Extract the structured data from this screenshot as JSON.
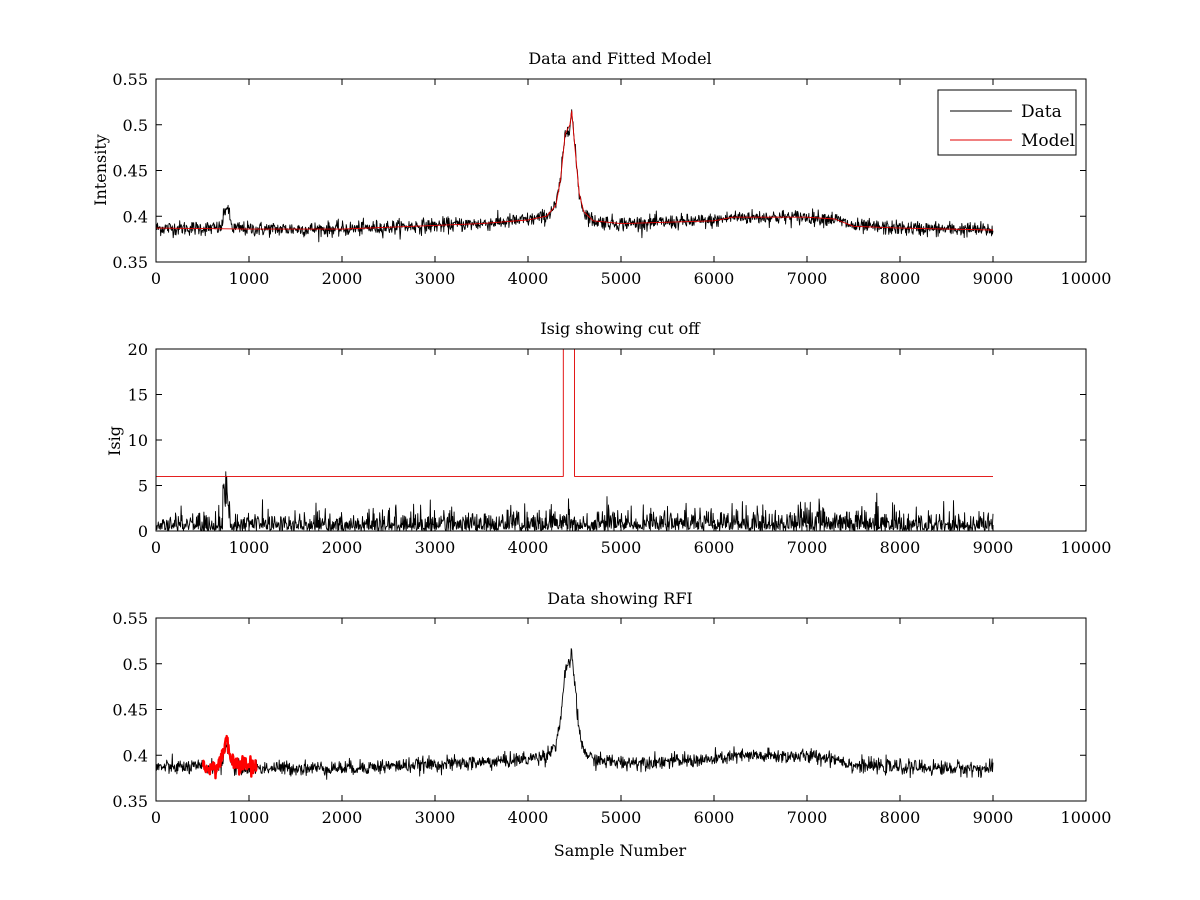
{
  "colors": {
    "data": "#000000",
    "model": "#e00000",
    "rfi": "#ff0000",
    "axes": "#000000",
    "background": "#ffffff"
  },
  "chart_data": [
    {
      "type": "line",
      "title": "Data and Fitted Model",
      "xlabel": "",
      "ylabel": "Intensity",
      "xlim": [
        0,
        10000
      ],
      "ylim": [
        0.35,
        0.55
      ],
      "xticks": [
        0,
        1000,
        2000,
        3000,
        4000,
        5000,
        6000,
        7000,
        8000,
        9000,
        10000
      ],
      "yticks": [
        0.35,
        0.4,
        0.45,
        0.5,
        0.55
      ],
      "xtick_labels": [
        "0",
        "1000",
        "2000",
        "3000",
        "4000",
        "5000",
        "6000",
        "7000",
        "8000",
        "9000",
        "10000"
      ],
      "ytick_labels": [
        "0.35",
        "0.4",
        "0.45",
        "0.5",
        "0.55"
      ],
      "legend": {
        "position": "top-right",
        "entries": [
          "Data",
          "Model"
        ]
      },
      "series": [
        {
          "name": "Data",
          "color": "#000000",
          "style": "noisy",
          "noise": 0.004,
          "x": [
            0,
            600,
            700,
            740,
            760,
            780,
            820,
            1000,
            2000,
            3000,
            3500,
            4000,
            4200,
            4300,
            4350,
            4400,
            4450,
            4470,
            4500,
            4550,
            4600,
            4700,
            5000,
            6000,
            6200,
            7000,
            7300,
            7500,
            8000,
            9000
          ],
          "y": [
            0.387,
            0.387,
            0.387,
            0.405,
            0.412,
            0.405,
            0.387,
            0.386,
            0.386,
            0.39,
            0.392,
            0.396,
            0.4,
            0.412,
            0.44,
            0.49,
            0.5,
            0.515,
            0.48,
            0.425,
            0.405,
            0.395,
            0.392,
            0.395,
            0.399,
            0.399,
            0.397,
            0.389,
            0.387,
            0.385
          ]
        },
        {
          "name": "Model",
          "color": "#e00000",
          "style": "line",
          "x": [
            0,
            1000,
            2000,
            3000,
            3500,
            4000,
            4200,
            4300,
            4350,
            4400,
            4450,
            4470,
            4500,
            4550,
            4600,
            4700,
            5000,
            6000,
            6200,
            7000,
            7300,
            7500,
            8000,
            9000
          ],
          "y": [
            0.387,
            0.386,
            0.386,
            0.39,
            0.392,
            0.396,
            0.4,
            0.412,
            0.44,
            0.49,
            0.5,
            0.515,
            0.48,
            0.425,
            0.405,
            0.395,
            0.392,
            0.395,
            0.399,
            0.399,
            0.397,
            0.389,
            0.387,
            0.385
          ]
        }
      ]
    },
    {
      "type": "line",
      "title": "Isig showing cut off",
      "xlabel": "",
      "ylabel": "Isig",
      "xlim": [
        0,
        10000
      ],
      "ylim": [
        0,
        20
      ],
      "xticks": [
        0,
        1000,
        2000,
        3000,
        4000,
        5000,
        6000,
        7000,
        8000,
        9000,
        10000
      ],
      "yticks": [
        0,
        5,
        10,
        15,
        20
      ],
      "xtick_labels": [
        "0",
        "1000",
        "2000",
        "3000",
        "4000",
        "5000",
        "6000",
        "7000",
        "8000",
        "9000",
        "10000"
      ],
      "ytick_labels": [
        "0",
        "5",
        "10",
        "15",
        "20"
      ],
      "series": [
        {
          "color": "#000000",
          "style": "spiky",
          "x": [
            0,
            700,
            730,
            750,
            770,
            800,
            4000,
            4300,
            7000,
            7300,
            9000
          ],
          "y": [
            1.2,
            1.2,
            5.5,
            7.0,
            5.5,
            1.2,
            1.4,
            1.5,
            1.6,
            1.5,
            1.3
          ]
        },
        {
          "color": "#e00000",
          "style": "line",
          "x": [
            0,
            4380,
            4380,
            4500,
            4500,
            9000
          ],
          "y": [
            6,
            6,
            20,
            20,
            6,
            6
          ]
        }
      ]
    },
    {
      "type": "line",
      "title": "Data showing RFI",
      "xlabel": "Sample Number",
      "ylabel": "",
      "xlim": [
        0,
        10000
      ],
      "ylim": [
        0.35,
        0.55
      ],
      "xticks": [
        0,
        1000,
        2000,
        3000,
        4000,
        5000,
        6000,
        7000,
        8000,
        9000,
        10000
      ],
      "yticks": [
        0.35,
        0.4,
        0.45,
        0.5,
        0.55
      ],
      "xtick_labels": [
        "0",
        "1000",
        "2000",
        "3000",
        "4000",
        "5000",
        "6000",
        "7000",
        "8000",
        "9000",
        "10000"
      ],
      "ytick_labels": [
        "0.35",
        "0.4",
        "0.45",
        "0.5",
        "0.55"
      ],
      "series": [
        {
          "color": "#000000",
          "style": "noisy",
          "noise": 0.004,
          "x": [
            0,
            600,
            700,
            740,
            760,
            780,
            820,
            1000,
            2000,
            3000,
            3500,
            4000,
            4200,
            4300,
            4350,
            4400,
            4450,
            4470,
            4500,
            4550,
            4600,
            4700,
            5000,
            6000,
            6200,
            7000,
            7300,
            7500,
            8000,
            9000
          ],
          "y": [
            0.387,
            0.387,
            0.387,
            0.405,
            0.412,
            0.405,
            0.387,
            0.386,
            0.386,
            0.39,
            0.392,
            0.396,
            0.4,
            0.412,
            0.44,
            0.49,
            0.5,
            0.515,
            0.48,
            0.425,
            0.405,
            0.395,
            0.392,
            0.395,
            0.399,
            0.399,
            0.397,
            0.389,
            0.387,
            0.385
          ]
        },
        {
          "color": "#ff0000",
          "style": "noisy",
          "noise": 0.005,
          "bold": true,
          "x": [
            500,
            650,
            700,
            740,
            760,
            780,
            820,
            900,
            1080
          ],
          "y": [
            0.386,
            0.387,
            0.395,
            0.41,
            0.415,
            0.408,
            0.392,
            0.389,
            0.388
          ]
        }
      ]
    }
  ]
}
